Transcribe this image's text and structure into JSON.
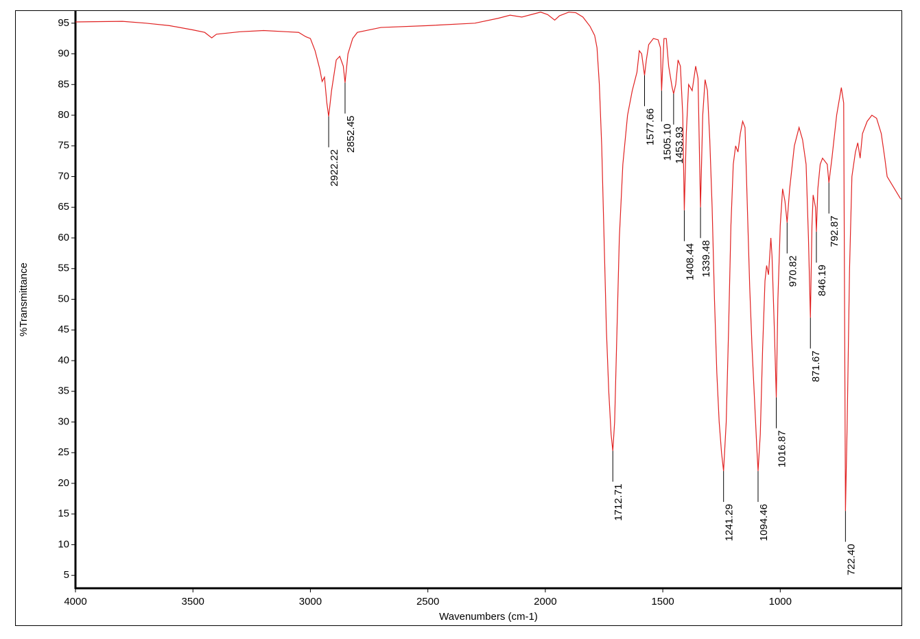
{
  "chart_data": {
    "type": "line",
    "xlabel": "Wavenumbers (cm-1)",
    "ylabel": "%Transmittance",
    "color": "#e02020",
    "xlim": [
      4000,
      484
    ],
    "ylim": [
      2.9,
      97.1
    ],
    "xticks": [
      4000,
      3500,
      3000,
      2500,
      2000,
      1500,
      1000
    ],
    "yticks": [
      5,
      10,
      15,
      20,
      25,
      30,
      35,
      40,
      45,
      50,
      55,
      60,
      65,
      70,
      75,
      80,
      85,
      90,
      95
    ],
    "x": [
      4000,
      3800,
      3700,
      3600,
      3500,
      3450,
      3420,
      3400,
      3300,
      3200,
      3100,
      3050,
      3020,
      3000,
      2980,
      2960,
      2950,
      2940,
      2930,
      2922.22,
      2910,
      2890,
      2875,
      2860,
      2852.45,
      2840,
      2820,
      2800,
      2700,
      2500,
      2300,
      2200,
      2150,
      2100,
      2050,
      2020,
      1990,
      1960,
      1940,
      1900,
      1870,
      1840,
      1810,
      1790,
      1780,
      1770,
      1760,
      1750,
      1740,
      1730,
      1720,
      1712.71,
      1705,
      1695,
      1685,
      1670,
      1650,
      1630,
      1610,
      1600,
      1590,
      1577.66,
      1570,
      1560,
      1540,
      1520,
      1510,
      1505.1,
      1495,
      1485,
      1475,
      1460,
      1453.93,
      1445,
      1435,
      1425,
      1415,
      1408.44,
      1400,
      1390,
      1375,
      1360,
      1350,
      1339.48,
      1330,
      1320,
      1310,
      1300,
      1290,
      1280,
      1270,
      1260,
      1250,
      1241.29,
      1230,
      1220,
      1210,
      1200,
      1190,
      1180,
      1170,
      1160,
      1150,
      1140,
      1130,
      1120,
      1110,
      1100,
      1094.46,
      1085,
      1075,
      1065,
      1058,
      1050,
      1040,
      1035,
      1025,
      1016.87,
      1010,
      1000,
      990,
      980,
      970.82,
      960,
      940,
      920,
      905,
      890,
      880,
      871.67,
      865,
      860,
      850,
      846.19,
      840,
      830,
      820,
      800,
      792.87,
      780,
      760,
      740,
      730,
      722.4,
      715,
      705,
      695,
      680,
      670,
      660,
      650,
      630,
      610,
      590,
      570,
      555,
      545,
      490,
      486
    ],
    "values": [
      95.2,
      95.3,
      95.0,
      94.6,
      93.9,
      93.5,
      92.6,
      93.2,
      93.6,
      93.8,
      93.6,
      93.5,
      92.8,
      92.5,
      90.5,
      87.5,
      85.5,
      86.2,
      82,
      79.8,
      84,
      89,
      89.6,
      88,
      85.3,
      90,
      92.5,
      93.5,
      94.3,
      94.6,
      95.0,
      95.8,
      96.3,
      96.0,
      96.5,
      96.8,
      96.4,
      95.5,
      96.2,
      96.8,
      96.7,
      96.0,
      94.5,
      93,
      91,
      85,
      75,
      60,
      45,
      35,
      28,
      25.3,
      30,
      45,
      60,
      72,
      80,
      84,
      87,
      90.5,
      90,
      86.5,
      89,
      91.5,
      92.5,
      92.3,
      91,
      84,
      92.5,
      92.5,
      88,
      84.5,
      83.5,
      85,
      89,
      88,
      80,
      64.5,
      77,
      85,
      84,
      88,
      86,
      65,
      80,
      85.8,
      84,
      76,
      65,
      50,
      38,
      30,
      25,
      22,
      30,
      45,
      62,
      72,
      75,
      74,
      77,
      79,
      78,
      65,
      52,
      42,
      34,
      26,
      22,
      28,
      42,
      53,
      55.5,
      54,
      60,
      57,
      45,
      34,
      50,
      62,
      68,
      66,
      62.5,
      68,
      75,
      78,
      76,
      72,
      60,
      47,
      62,
      67,
      65,
      61,
      68,
      72,
      73,
      72,
      69,
      73,
      80,
      84.5,
      82,
      15.5,
      30,
      55,
      70,
      74,
      75.5,
      73,
      77,
      79,
      80,
      79.5,
      77,
      73,
      70,
      66.5,
      66.3
    ],
    "peaks": {
      "x": [
        2922.22,
        2852.45,
        1712.71,
        1577.66,
        1505.1,
        1453.93,
        1408.44,
        1339.48,
        1241.29,
        1094.46,
        1016.87,
        970.82,
        871.67,
        846.19,
        792.87,
        722.4
      ],
      "y": [
        79.8,
        85.3,
        25.3,
        86.5,
        84,
        83.5,
        64.5,
        65,
        22,
        22,
        34,
        62.5,
        47,
        61,
        69,
        15.5
      ],
      "value_labels": [
        "2922.22",
        "2852.45",
        "1712.71",
        "1577.66",
        "1505.10",
        "1453.93",
        "1408.44",
        "1339.48",
        "1241.29",
        "1094.46",
        "1016.87",
        "970.82",
        "871.67",
        "846.19",
        "792.87",
        "722.40"
      ]
    }
  }
}
